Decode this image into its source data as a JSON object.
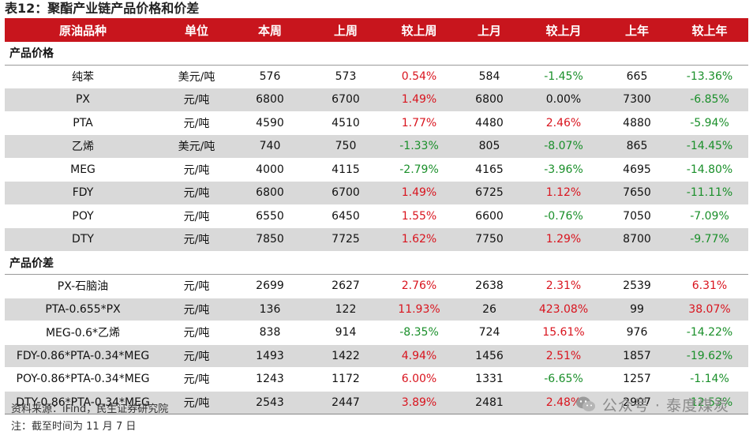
{
  "title": "表12：聚酯产业链产品价格和价差",
  "headers": [
    "原油品种",
    "单位",
    "本周",
    "上周",
    "较上周",
    "上月",
    "较上月",
    "上年",
    "较上年"
  ],
  "colors": {
    "header_bg": "#c8151d",
    "up": "#d9141e",
    "down": "#1a8f2a",
    "shade": "#d9d9d9"
  },
  "sections": [
    {
      "label": "产品价格",
      "rows": [
        {
          "name": "纯苯",
          "unit": "美元/吨",
          "this_week": "576",
          "last_week": "573",
          "wow": "0.54%",
          "wow_dir": "up",
          "last_month": "584",
          "mom": "-1.45%",
          "mom_dir": "down",
          "last_year": "665",
          "yoy": "-13.36%",
          "yoy_dir": "down"
        },
        {
          "name": "PX",
          "unit": "元/吨",
          "this_week": "6800",
          "last_week": "6700",
          "wow": "1.49%",
          "wow_dir": "up",
          "last_month": "6800",
          "mom": "0.00%",
          "mom_dir": "flat",
          "last_year": "7300",
          "yoy": "-6.85%",
          "yoy_dir": "down"
        },
        {
          "name": "PTA",
          "unit": "元/吨",
          "this_week": "4590",
          "last_week": "4510",
          "wow": "1.77%",
          "wow_dir": "up",
          "last_month": "4480",
          "mom": "2.46%",
          "mom_dir": "up",
          "last_year": "4880",
          "yoy": "-5.94%",
          "yoy_dir": "down"
        },
        {
          "name": "乙烯",
          "unit": "美元/吨",
          "this_week": "740",
          "last_week": "750",
          "wow": "-1.33%",
          "wow_dir": "down",
          "last_month": "805",
          "mom": "-8.07%",
          "mom_dir": "down",
          "last_year": "865",
          "yoy": "-14.45%",
          "yoy_dir": "down"
        },
        {
          "name": "MEG",
          "unit": "元/吨",
          "this_week": "4000",
          "last_week": "4115",
          "wow": "-2.79%",
          "wow_dir": "down",
          "last_month": "4165",
          "mom": "-3.96%",
          "mom_dir": "down",
          "last_year": "4695",
          "yoy": "-14.80%",
          "yoy_dir": "down"
        },
        {
          "name": "FDY",
          "unit": "元/吨",
          "this_week": "6800",
          "last_week": "6700",
          "wow": "1.49%",
          "wow_dir": "up",
          "last_month": "6725",
          "mom": "1.12%",
          "mom_dir": "up",
          "last_year": "7650",
          "yoy": "-11.11%",
          "yoy_dir": "down"
        },
        {
          "name": "POY",
          "unit": "元/吨",
          "this_week": "6550",
          "last_week": "6450",
          "wow": "1.55%",
          "wow_dir": "up",
          "last_month": "6600",
          "mom": "-0.76%",
          "mom_dir": "down",
          "last_year": "7050",
          "yoy": "-7.09%",
          "yoy_dir": "down"
        },
        {
          "name": "DTY",
          "unit": "元/吨",
          "this_week": "7850",
          "last_week": "7725",
          "wow": "1.62%",
          "wow_dir": "up",
          "last_month": "7750",
          "mom": "1.29%",
          "mom_dir": "up",
          "last_year": "8700",
          "yoy": "-9.77%",
          "yoy_dir": "down"
        }
      ]
    },
    {
      "label": "产品价差",
      "rows": [
        {
          "name": "PX-石脑油",
          "unit": "元/吨",
          "this_week": "2699",
          "last_week": "2627",
          "wow": "2.76%",
          "wow_dir": "up",
          "last_month": "2638",
          "mom": "2.31%",
          "mom_dir": "up",
          "last_year": "2539",
          "yoy": "6.31%",
          "yoy_dir": "up"
        },
        {
          "name": "PTA-0.655*PX",
          "unit": "元/吨",
          "this_week": "136",
          "last_week": "122",
          "wow": "11.93%",
          "wow_dir": "up",
          "last_month": "26",
          "mom": "423.08%",
          "mom_dir": "up",
          "last_year": "99",
          "yoy": "38.07%",
          "yoy_dir": "up"
        },
        {
          "name": "MEG-0.6*乙烯",
          "unit": "元/吨",
          "this_week": "838",
          "last_week": "914",
          "wow": "-8.35%",
          "wow_dir": "down",
          "last_month": "724",
          "mom": "15.61%",
          "mom_dir": "up",
          "last_year": "976",
          "yoy": "-14.22%",
          "yoy_dir": "down"
        },
        {
          "name": "FDY-0.86*PTA-0.34*MEG",
          "unit": "元/吨",
          "this_week": "1493",
          "last_week": "1422",
          "wow": "4.94%",
          "wow_dir": "up",
          "last_month": "1456",
          "mom": "2.51%",
          "mom_dir": "up",
          "last_year": "1857",
          "yoy": "-19.62%",
          "yoy_dir": "down"
        },
        {
          "name": "POY-0.86*PTA-0.34*MEG",
          "unit": "元/吨",
          "this_week": "1243",
          "last_week": "1172",
          "wow": "6.00%",
          "wow_dir": "up",
          "last_month": "1331",
          "mom": "-6.65%",
          "mom_dir": "down",
          "last_year": "1257",
          "yoy": "-1.14%",
          "yoy_dir": "down"
        },
        {
          "name": "DTY-0.86*PTA-0.34*MEG",
          "unit": "元/吨",
          "this_week": "2543",
          "last_week": "2447",
          "wow": "3.89%",
          "wow_dir": "up",
          "last_month": "2481",
          "mom": "2.48%",
          "mom_dir": "up",
          "last_year": "2907",
          "yoy": "-12.53%",
          "yoy_dir": "down"
        }
      ]
    }
  ],
  "source": "资料来源：iFind，民生证券研究院",
  "note": "注：截至时间为 11 月 7 日",
  "watermark": {
    "text": "公众号 · 泰度煤炭",
    "icon": "wechat-icon"
  }
}
